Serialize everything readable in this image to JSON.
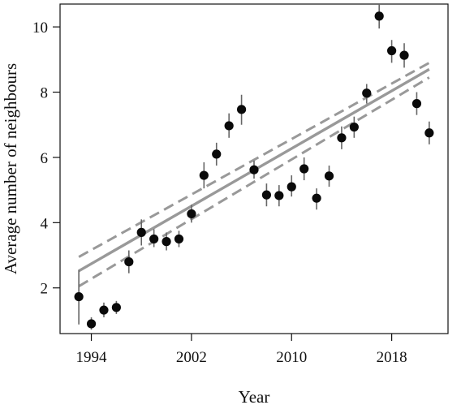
{
  "chart_data": {
    "type": "scatter",
    "title": "",
    "xlabel": "Year",
    "ylabel": "Average number of neighbours",
    "xlim": [
      1991.5,
      2022.5
    ],
    "ylim": [
      0.6,
      10.7
    ],
    "xticks": [
      1994,
      2002,
      2010,
      2018
    ],
    "xtick_labels": [
      "1994",
      "2002",
      "2010",
      "2018"
    ],
    "yticks": [
      2,
      4,
      6,
      8,
      10
    ],
    "ytick_labels": [
      "2",
      "4",
      "6",
      "8",
      "10"
    ],
    "grid": false,
    "legend": "none",
    "colors": {
      "points": "#0a0a0a",
      "error_bars": "#666666",
      "fit": "#999999"
    },
    "points": [
      {
        "x": 1993,
        "y": 1.73,
        "lo": 0.88,
        "hi": 2.55
      },
      {
        "x": 1994,
        "y": 0.9,
        "lo": 0.72,
        "hi": 1.1
      },
      {
        "x": 1995,
        "y": 1.32,
        "lo": 1.1,
        "hi": 1.55
      },
      {
        "x": 1996,
        "y": 1.4,
        "lo": 1.2,
        "hi": 1.6
      },
      {
        "x": 1997,
        "y": 2.8,
        "lo": 2.45,
        "hi": 3.15
      },
      {
        "x": 1998,
        "y": 3.7,
        "lo": 3.3,
        "hi": 4.1
      },
      {
        "x": 1999,
        "y": 3.5,
        "lo": 3.25,
        "hi": 3.8
      },
      {
        "x": 2000,
        "y": 3.42,
        "lo": 3.15,
        "hi": 3.7
      },
      {
        "x": 2001,
        "y": 3.5,
        "lo": 3.25,
        "hi": 3.75
      },
      {
        "x": 2002,
        "y": 4.27,
        "lo": 4.0,
        "hi": 4.55
      },
      {
        "x": 2003,
        "y": 5.45,
        "lo": 5.05,
        "hi": 5.85
      },
      {
        "x": 2004,
        "y": 6.1,
        "lo": 5.75,
        "hi": 6.45
      },
      {
        "x": 2005,
        "y": 6.97,
        "lo": 6.6,
        "hi": 7.35
      },
      {
        "x": 2006,
        "y": 7.47,
        "lo": 7.0,
        "hi": 7.92
      },
      {
        "x": 2007,
        "y": 5.62,
        "lo": 5.35,
        "hi": 5.9
      },
      {
        "x": 2008,
        "y": 4.85,
        "lo": 4.5,
        "hi": 5.2
      },
      {
        "x": 2009,
        "y": 4.83,
        "lo": 4.5,
        "hi": 5.15
      },
      {
        "x": 2010,
        "y": 5.1,
        "lo": 4.8,
        "hi": 5.45
      },
      {
        "x": 2011,
        "y": 5.65,
        "lo": 5.3,
        "hi": 6.0
      },
      {
        "x": 2012,
        "y": 4.75,
        "lo": 4.4,
        "hi": 5.05
      },
      {
        "x": 2013,
        "y": 5.43,
        "lo": 5.1,
        "hi": 5.75
      },
      {
        "x": 2014,
        "y": 6.6,
        "lo": 6.25,
        "hi": 6.95
      },
      {
        "x": 2015,
        "y": 6.93,
        "lo": 6.6,
        "hi": 7.25
      },
      {
        "x": 2016,
        "y": 7.97,
        "lo": 7.65,
        "hi": 8.25
      },
      {
        "x": 2017,
        "y": 10.33,
        "lo": 9.95,
        "hi": 10.7
      },
      {
        "x": 2018,
        "y": 9.27,
        "lo": 8.9,
        "hi": 9.6
      },
      {
        "x": 2019,
        "y": 9.13,
        "lo": 8.75,
        "hi": 9.5
      },
      {
        "x": 2020,
        "y": 7.65,
        "lo": 7.3,
        "hi": 8.0
      },
      {
        "x": 2021,
        "y": 6.75,
        "lo": 6.4,
        "hi": 7.1
      }
    ],
    "fit": {
      "x": [
        1993,
        2021
      ],
      "y": [
        2.52,
        8.7
      ]
    },
    "ci_upper": {
      "x": [
        1993,
        2021
      ],
      "y": [
        2.95,
        8.9
      ]
    },
    "ci_lower": {
      "x": [
        1993,
        2021
      ],
      "y": [
        2.05,
        8.45
      ]
    }
  }
}
